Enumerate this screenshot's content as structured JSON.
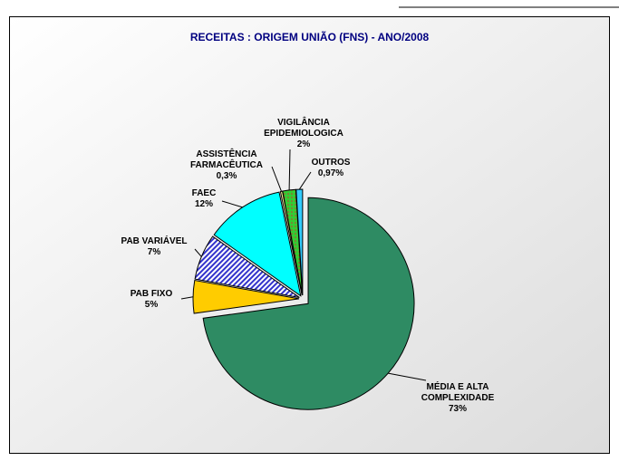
{
  "chart_data": {
    "type": "pie",
    "title": "RECEITAS : ORIGEM UNIÃO (FNS) - ANO/2008",
    "categories": [
      "MÉDIA E ALTA COMPLEXIDADE",
      "PAB FIXO",
      "PAB VARIÁVEL",
      "FAEC",
      "ASSISTÊNCIA FARMACÊUTICA",
      "VIGILÂNCIA EPIDEMIOLOGICA",
      "OUTROS"
    ],
    "values": [
      73,
      5,
      7,
      12,
      0.3,
      2,
      0.97
    ],
    "value_labels": [
      "73%",
      "5%",
      "7%",
      "12%",
      "0,3%",
      "2%",
      "0,97%"
    ],
    "colors": [
      "#2e8b63",
      "#ffcc00",
      "#3333cc",
      "#00ffff",
      "#ffff99",
      "#33cc33",
      "#33ccff"
    ]
  }
}
